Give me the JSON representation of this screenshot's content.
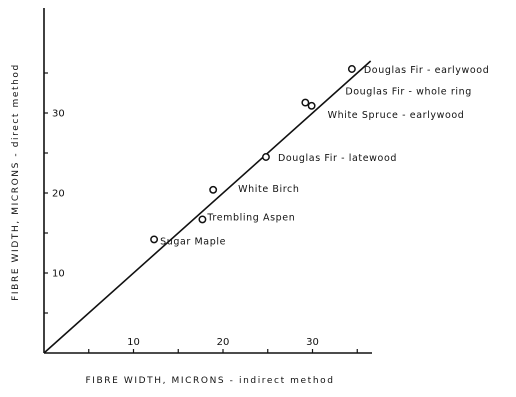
{
  "chart_data": {
    "type": "scatter",
    "title": "",
    "xlabel": "FIBRE WIDTH, MICRONS - indirect method",
    "ylabel": "FIBRE WIDTH, MICRONS - direct method",
    "xlim": [
      0,
      37
    ],
    "ylim": [
      0,
      37
    ],
    "x_ticks": [
      10,
      20,
      30
    ],
    "y_ticks": [
      10,
      20,
      30
    ],
    "x_tick_labels": [
      "10",
      "20",
      "30"
    ],
    "y_tick_labels": [
      "10",
      "20",
      "30"
    ],
    "grid": false,
    "reference_line": {
      "description": "line of equality",
      "from": [
        0,
        0
      ],
      "to": [
        36.5,
        36.5
      ]
    },
    "points": [
      {
        "label": "Douglas Fir - earlywood",
        "x": 34.4,
        "y": 35.5
      },
      {
        "label": "Douglas Fir - whole ring",
        "x": 29.2,
        "y": 31.3
      },
      {
        "label": "White Spruce - earlywood",
        "x": 29.9,
        "y": 30.9
      },
      {
        "label": "Douglas Fir - latewood",
        "x": 24.8,
        "y": 24.5
      },
      {
        "label": "White Birch",
        "x": 18.9,
        "y": 20.4
      },
      {
        "label": "Trembling Aspen",
        "x": 17.7,
        "y": 16.7
      },
      {
        "label": "Sugar Maple",
        "x": 12.3,
        "y": 14.2
      }
    ]
  }
}
